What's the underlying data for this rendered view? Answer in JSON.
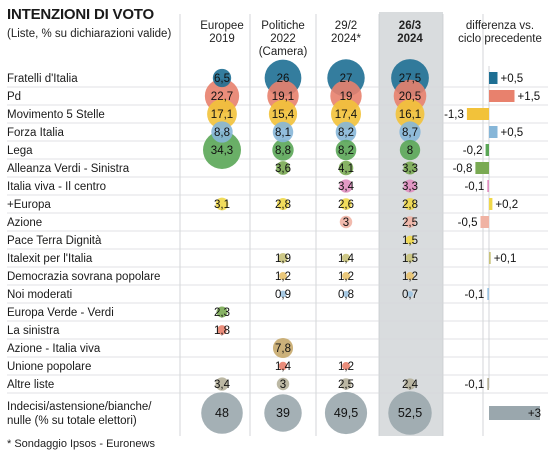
{
  "title": "INTENZIONI DI VOTO",
  "subtitle": "(Liste, % su dichiarazioni valide)",
  "footnote": "* Sondaggio Ipsos - Euronews",
  "chart_data": {
    "type": "table",
    "columns": [
      {
        "key": "eu2019",
        "label_lines": [
          "Europee",
          "2019"
        ]
      },
      {
        "key": "pol2022",
        "label_lines": [
          "Politiche",
          "2022",
          "(Camera)"
        ]
      },
      {
        "key": "feb2024",
        "label_lines": [
          "29/2",
          "2024*"
        ]
      },
      {
        "key": "mar2024",
        "label_lines": [
          "26/3",
          "2024"
        ],
        "highlight": true
      },
      {
        "key": "diff",
        "label_lines": [
          "differenza vs.",
          "ciclo precedente"
        ]
      }
    ],
    "rows": [
      {
        "label": "Fratelli d'Italia",
        "color": "#1e6f93",
        "values": [
          6.5,
          26,
          27,
          27.5
        ],
        "diff": 0.5
      },
      {
        "label": "Pd",
        "color": "#e8816d",
        "values": [
          22.7,
          19.1,
          19,
          20.5
        ],
        "diff": 1.5
      },
      {
        "label": "Movimento 5 Stelle",
        "color": "#f2c23a",
        "values": [
          17.1,
          15.4,
          17.4,
          16.1
        ],
        "diff": -1.3
      },
      {
        "label": "Forza Italia",
        "color": "#86b6d8",
        "values": [
          8.8,
          8.1,
          8.2,
          8.7
        ],
        "diff": 0.5
      },
      {
        "label": "Lega",
        "color": "#5aa656",
        "values": [
          34.3,
          8.8,
          8.2,
          8
        ],
        "diff": -0.2
      },
      {
        "label": "Alleanza Verdi - Sinistra",
        "color": "#7aaa53",
        "values": [
          null,
          3.6,
          4.1,
          3.3
        ],
        "diff": -0.8
      },
      {
        "label": "Italia viva - Il centro",
        "color": "#e08fc0",
        "values": [
          null,
          null,
          3.4,
          3.3
        ],
        "diff": -0.1
      },
      {
        "label": "+Europa",
        "color": "#f0d84a",
        "values": [
          3.1,
          2.8,
          2.6,
          2.8
        ],
        "diff": 0.2
      },
      {
        "label": "Azione",
        "color": "#f0b3a4",
        "values": [
          null,
          null,
          3,
          2.5
        ],
        "diff": -0.5
      },
      {
        "label": "Pace Terra Dignità",
        "color": "#f0d84a",
        "values": [
          null,
          null,
          null,
          1.5
        ],
        "diff": null
      },
      {
        "label": "Italexit per l'Italia",
        "color": "#c8c27a",
        "values": [
          null,
          1.9,
          1.4,
          1.5
        ],
        "diff": 0.1
      },
      {
        "label": "Democrazia sovrana popolare",
        "color": "#e8c26d",
        "values": [
          null,
          1.2,
          1.2,
          1.2
        ],
        "diff": null
      },
      {
        "label": "Noi moderati",
        "color": "#9dc3e0",
        "values": [
          null,
          0.9,
          0.8,
          0.7
        ],
        "diff": -0.1
      },
      {
        "label": "Europa Verde - Verdi",
        "color": "#7aaa53",
        "values": [
          2.3,
          null,
          null,
          null
        ],
        "diff": null
      },
      {
        "label": "La sinistra",
        "color": "#e8816d",
        "values": [
          1.8,
          null,
          null,
          null
        ],
        "diff": null
      },
      {
        "label": "Azione - Italia viva",
        "color": "#c7a86b",
        "values": [
          null,
          7.8,
          null,
          null
        ],
        "diff": null
      },
      {
        "label": "Unione popolare",
        "color": "#e8816d",
        "values": [
          null,
          1.4,
          1.2,
          null
        ],
        "diff": null
      },
      {
        "label": "Altre liste",
        "color": "#b5b09a",
        "values": [
          3.4,
          3,
          2.5,
          2.4
        ],
        "diff": -0.1
      },
      {
        "label_lines": [
          "Indecisi/astensione/bianche/",
          "nulle (% su totale elettori)"
        ],
        "color": "#9aa7ad",
        "values": [
          48,
          39,
          49.5,
          52.5
        ],
        "diff": 3
      }
    ]
  }
}
